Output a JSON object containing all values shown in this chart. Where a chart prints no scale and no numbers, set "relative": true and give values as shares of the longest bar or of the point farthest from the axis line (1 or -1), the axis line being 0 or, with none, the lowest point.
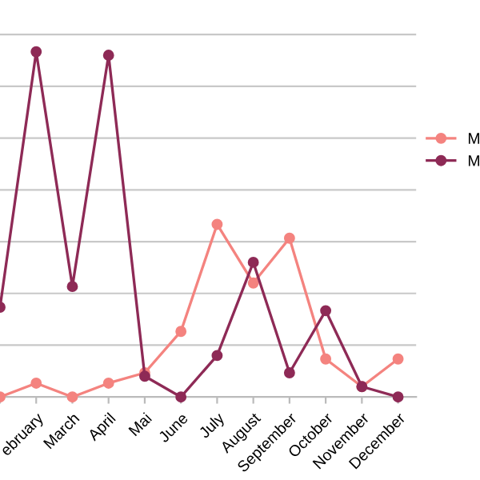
{
  "chart_data": {
    "type": "line",
    "relative": true,
    "categories": [
      null,
      "ebruary",
      "March",
      "April",
      "Mai",
      "June",
      "July",
      "August",
      "September",
      "October",
      "November",
      "December"
    ],
    "series": [
      {
        "name": "M",
        "color": "#f4837f",
        "values": [
          0,
          0.04,
          0,
          0.04,
          0.07,
          0.19,
          0.5,
          0.33,
          0.46,
          0.11,
          0.03,
          0.11
        ]
      },
      {
        "name": "M",
        "color": "#8e2a56",
        "values": [
          0.26,
          1,
          0.32,
          0.99,
          0.06,
          0,
          0.12,
          0.39,
          0.07,
          0.25,
          0.03,
          0
        ]
      }
    ],
    "marker": "circle",
    "grid": "y",
    "legend": "right"
  }
}
